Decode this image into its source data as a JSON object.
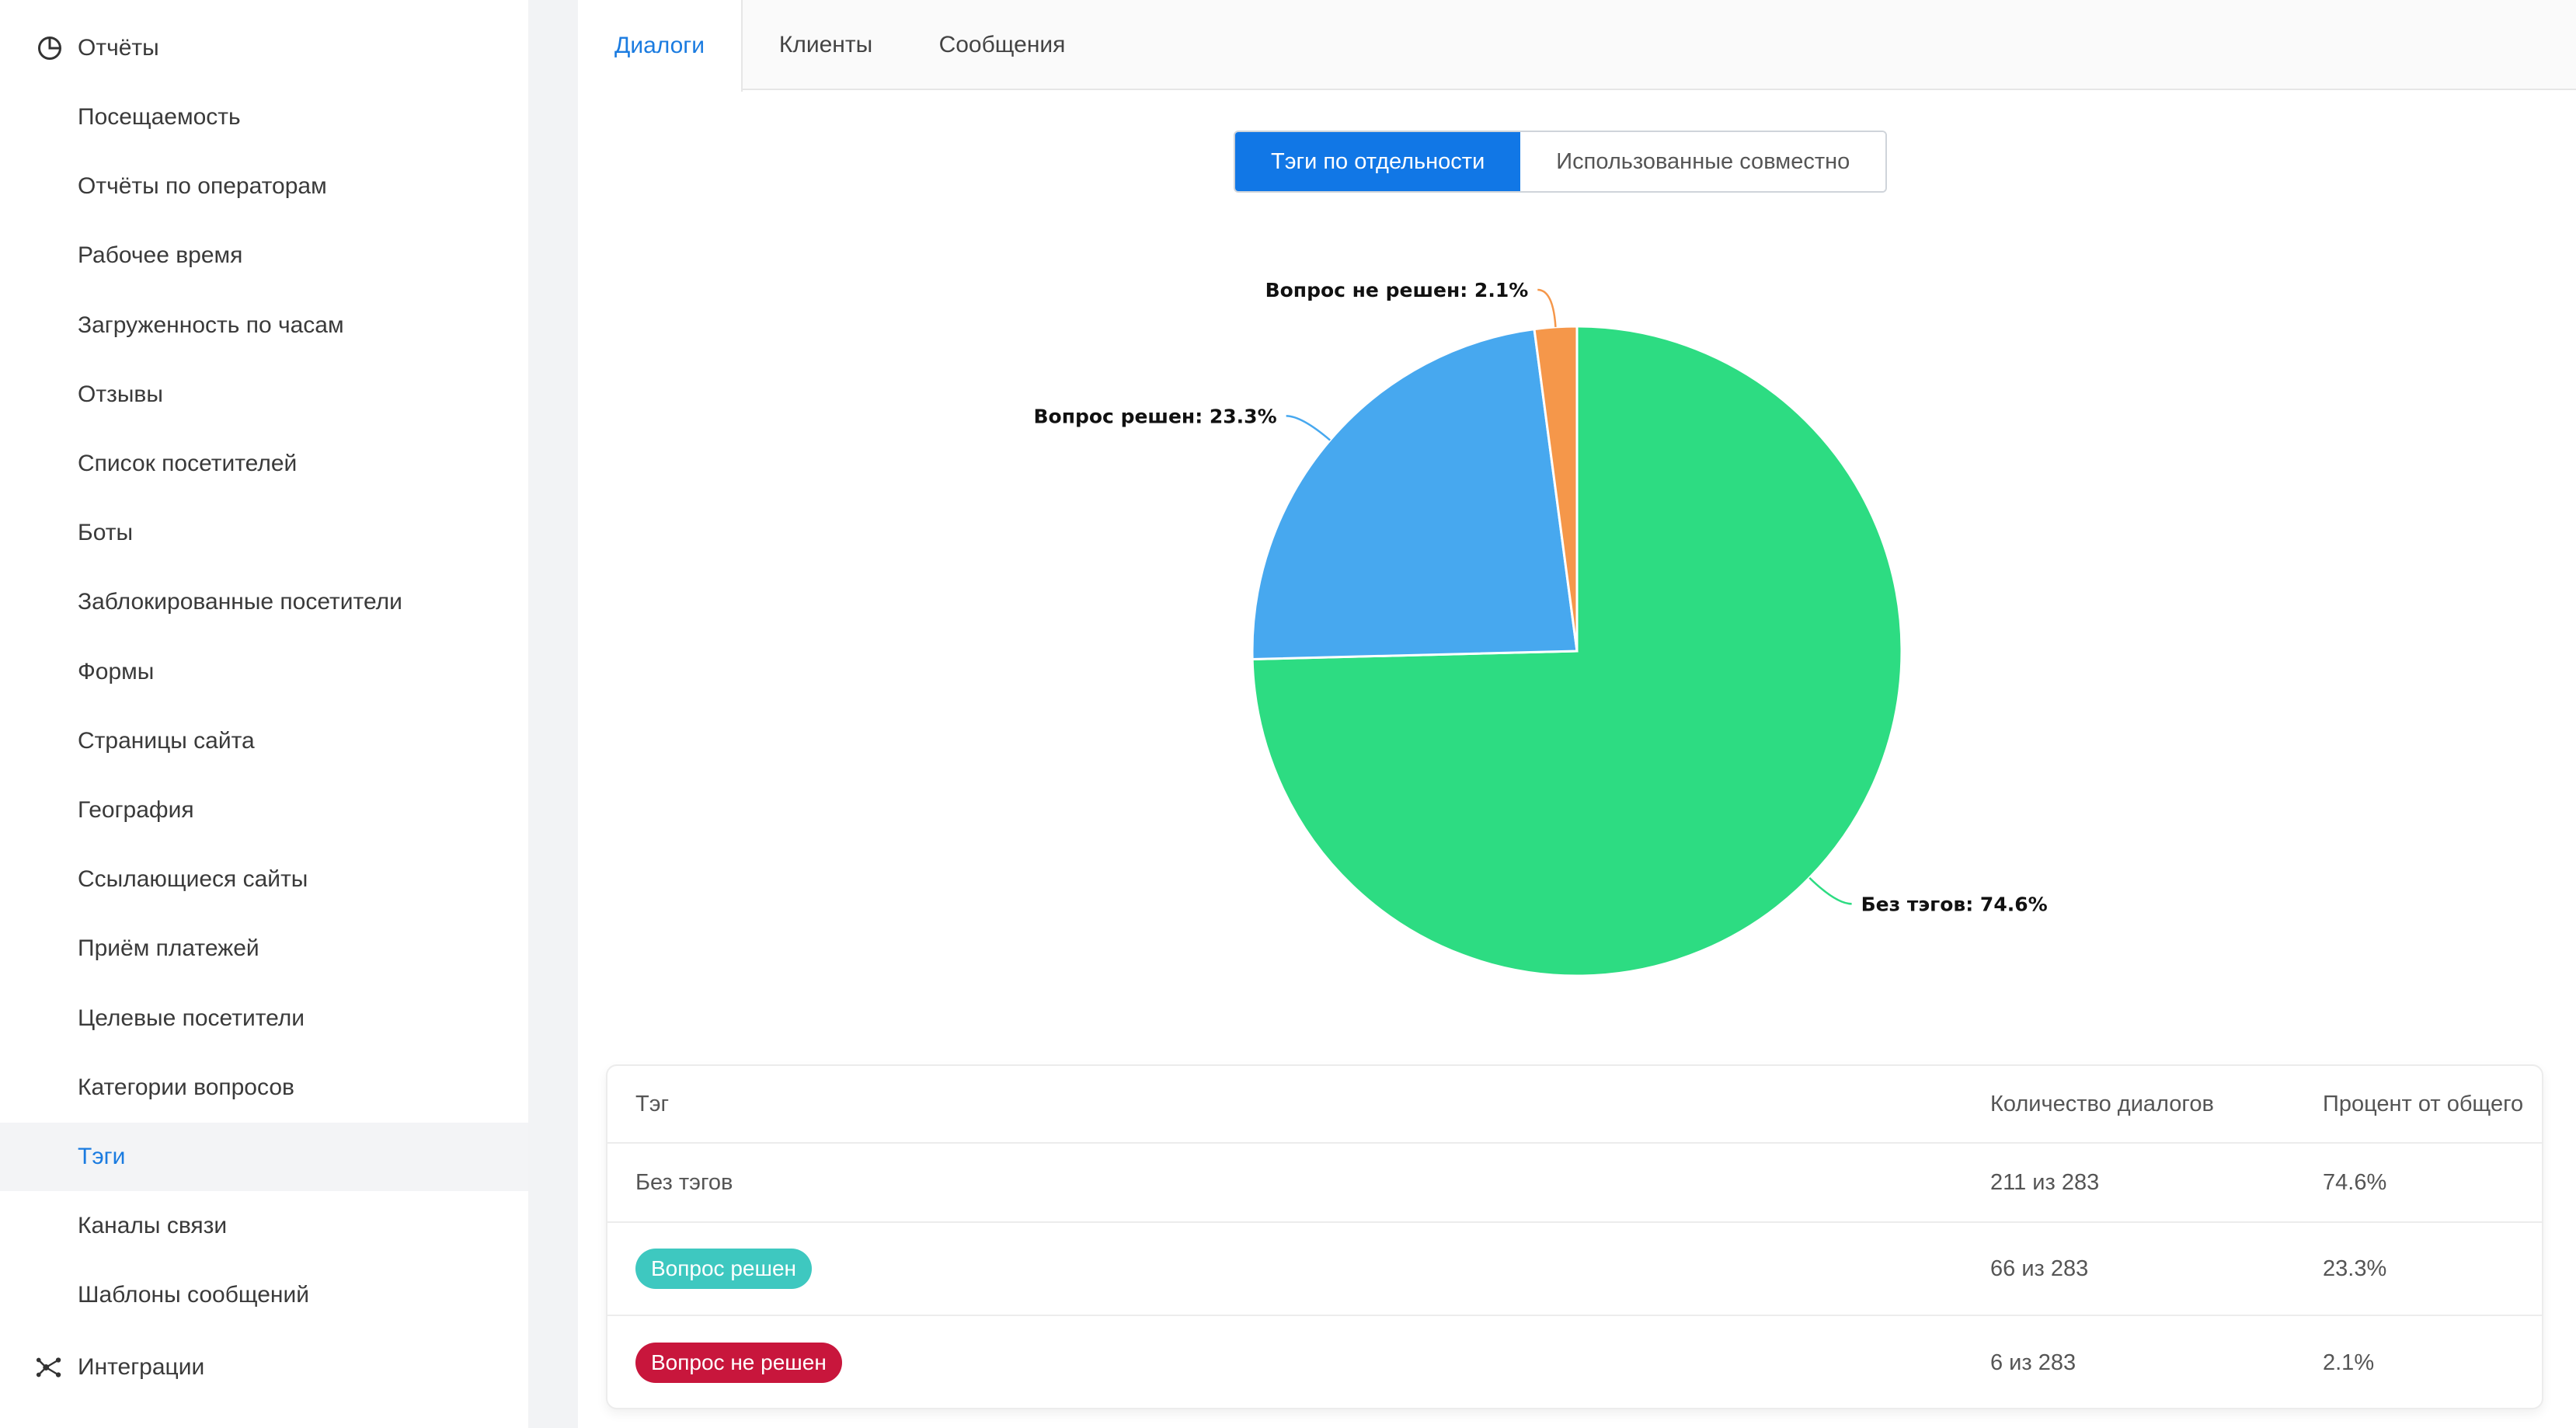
{
  "sidebar": {
    "reports_label": "Отчёты",
    "items": [
      "Посещаемость",
      "Отчёты по операторам",
      "Рабочее время",
      "Загруженность по часам",
      "Отзывы",
      "Список посетителей",
      "Боты",
      "Заблокированные посетители",
      "Формы",
      "Страницы сайта",
      "География",
      "Ссылающиеся сайты",
      "Приём платежей",
      "Целевые посетители",
      "Категории вопросов",
      "Тэги",
      "Каналы связи",
      "Шаблоны сообщений"
    ],
    "active_item": "Тэги",
    "integrations_label": "Интеграции",
    "icons": {
      "reports": "pie-chart-icon",
      "integrations": "network-icon"
    }
  },
  "tabs": [
    "Диалоги",
    "Клиенты",
    "Сообщения"
  ],
  "active_tab": "Диалоги",
  "toggle": {
    "individual": "Тэги по отдельности",
    "combined": "Использованные совместно",
    "active": "individual"
  },
  "chart_data": {
    "type": "pie",
    "categories": [
      "Без тэгов",
      "Вопрос решен",
      "Вопрос не решен"
    ],
    "values": [
      74.6,
      23.3,
      2.1
    ],
    "labels": [
      "Без тэгов: 74.6%",
      "Вопрос решен: 23.3%",
      "Вопрос не решен: 2.1%"
    ],
    "colors": [
      "#2ddc82",
      "#47a8ef",
      "#f5974a"
    ]
  },
  "table": {
    "headers": [
      "Тэг",
      "Количество диалогов",
      "Процент от общего"
    ],
    "rows": [
      {
        "tag": "Без тэгов",
        "count": "211 из 283",
        "percent": "74.6%",
        "badge": false,
        "color": ""
      },
      {
        "tag": "Вопрос решен",
        "count": "66 из 283",
        "percent": "23.3%",
        "badge": true,
        "color": "#3ec8c0"
      },
      {
        "tag": "Вопрос не решен",
        "count": "6 из 283",
        "percent": "2.1%",
        "badge": true,
        "color": "#c8163c"
      }
    ]
  }
}
